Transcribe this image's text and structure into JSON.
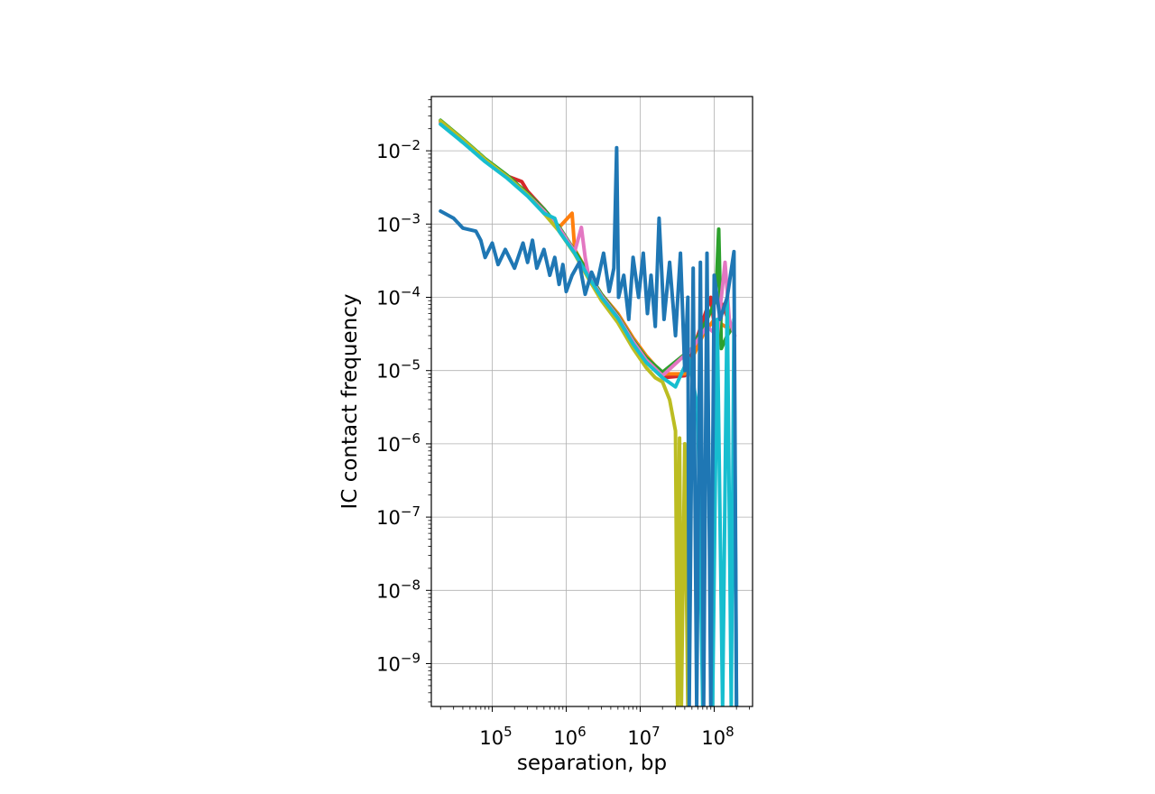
{
  "chart_data": {
    "type": "line",
    "title": "",
    "xlabel": "separation, bp",
    "ylabel": "IC contact frequency",
    "xscale": "log",
    "yscale": "log",
    "xlim": [
      15000,
      330000000
    ],
    "ylim": [
      2.6e-10,
      0.055
    ],
    "grid": true,
    "legend": "none",
    "xticks": [
      {
        "value": 100000,
        "base": "10",
        "exp": "5"
      },
      {
        "value": 1000000,
        "base": "10",
        "exp": "6"
      },
      {
        "value": 10000000,
        "base": "10",
        "exp": "7"
      },
      {
        "value": 100000000,
        "base": "10",
        "exp": "8"
      }
    ],
    "yticks": [
      {
        "value": 0.01,
        "base": "10",
        "exp": "−2"
      },
      {
        "value": 0.001,
        "base": "10",
        "exp": "−3"
      },
      {
        "value": 0.0001,
        "base": "10",
        "exp": "−4"
      },
      {
        "value": 1e-05,
        "base": "10",
        "exp": "−5"
      },
      {
        "value": 1e-06,
        "base": "10",
        "exp": "−6"
      },
      {
        "value": 1e-07,
        "base": "10",
        "exp": "−7"
      },
      {
        "value": 1e-08,
        "base": "10",
        "exp": "−8"
      },
      {
        "value": 1e-09,
        "base": "10",
        "exp": "−9"
      }
    ],
    "series": [
      {
        "color": "#d62728",
        "points": [
          [
            20000,
            0.025
          ],
          [
            40000,
            0.014
          ],
          [
            80000,
            0.0075
          ],
          [
            160000,
            0.0045
          ],
          [
            250000,
            0.0038
          ],
          [
            300000,
            0.0028
          ],
          [
            500000,
            0.0016
          ],
          [
            800000,
            0.00085
          ],
          [
            1300000,
            0.00042
          ],
          [
            2000000,
            0.0002
          ],
          [
            3000000,
            0.000105
          ],
          [
            5000000,
            5.5e-05
          ],
          [
            8000000,
            2.5e-05
          ],
          [
            12000000,
            1.4e-05
          ],
          [
            20000000,
            8e-06
          ],
          [
            40000000,
            8.5e-06
          ],
          [
            60000000,
            3e-05
          ],
          [
            90000000,
            0.0001
          ],
          [
            110000000,
            2e-05
          ],
          [
            130000000,
            8e-05
          ],
          [
            160000000,
            4.5e-05
          ]
        ]
      },
      {
        "color": "#ff7f0e",
        "points": [
          [
            20000,
            0.024
          ],
          [
            40000,
            0.0135
          ],
          [
            80000,
            0.0073
          ],
          [
            160000,
            0.0043
          ],
          [
            300000,
            0.0025
          ],
          [
            500000,
            0.0015
          ],
          [
            800000,
            0.0009
          ],
          [
            1200000,
            0.0014
          ],
          [
            1300000,
            0.00045
          ],
          [
            2000000,
            0.00021
          ],
          [
            3000000,
            0.00011
          ],
          [
            5000000,
            6e-05
          ],
          [
            8000000,
            2.8e-05
          ],
          [
            12000000,
            1.6e-05
          ],
          [
            20000000,
            9e-06
          ],
          [
            40000000,
            9e-06
          ],
          [
            70000000,
            3e-05
          ],
          [
            100000000,
            5e-05
          ],
          [
            140000000,
            4e-05
          ],
          [
            170000000,
            4e-05
          ]
        ]
      },
      {
        "color": "#2ca02c",
        "points": [
          [
            20000,
            0.026
          ],
          [
            40000,
            0.0145
          ],
          [
            80000,
            0.0078
          ],
          [
            160000,
            0.0046
          ],
          [
            300000,
            0.0026
          ],
          [
            500000,
            0.0016
          ],
          [
            800000,
            0.00092
          ],
          [
            1300000,
            0.00043
          ],
          [
            2000000,
            0.00021
          ],
          [
            3000000,
            0.00011
          ],
          [
            5000000,
            5.6e-05
          ],
          [
            8000000,
            2.6e-05
          ],
          [
            12000000,
            1.5e-05
          ],
          [
            20000000,
            9.5e-06
          ],
          [
            50000000,
            2e-05
          ],
          [
            80000000,
            5e-05
          ],
          [
            105000000,
            9e-05
          ],
          [
            115000000,
            0.00085
          ],
          [
            125000000,
            2e-05
          ],
          [
            150000000,
            3e-05
          ],
          [
            180000000,
            4e-05
          ]
        ]
      },
      {
        "color": "#e377c2",
        "points": [
          [
            20000,
            0.0245
          ],
          [
            40000,
            0.0138
          ],
          [
            80000,
            0.0075
          ],
          [
            160000,
            0.0044
          ],
          [
            300000,
            0.0025
          ],
          [
            500000,
            0.0015
          ],
          [
            800000,
            0.00088
          ],
          [
            1300000,
            0.00042
          ],
          [
            1600000,
            0.0009
          ],
          [
            1800000,
            0.00035
          ],
          [
            2000000,
            0.0002
          ],
          [
            3000000,
            0.000105
          ],
          [
            5000000,
            5.4e-05
          ],
          [
            8000000,
            2.5e-05
          ],
          [
            12000000,
            1.4e-05
          ],
          [
            20000000,
            8.5e-06
          ],
          [
            50000000,
            2e-05
          ],
          [
            80000000,
            4e-05
          ],
          [
            110000000,
            3e-05
          ],
          [
            140000000,
            0.0003
          ],
          [
            160000000,
            5e-05
          ],
          [
            190000000,
            3e-05
          ]
        ]
      },
      {
        "color": "#bcbd22",
        "points": [
          [
            20000,
            0.0255
          ],
          [
            40000,
            0.0142
          ],
          [
            80000,
            0.0076
          ],
          [
            160000,
            0.0044
          ],
          [
            300000,
            0.0025
          ],
          [
            500000,
            0.0014
          ],
          [
            800000,
            0.0008
          ],
          [
            1300000,
            0.00039
          ],
          [
            2000000,
            0.00018
          ],
          [
            3000000,
            9e-05
          ],
          [
            5000000,
            4.5e-05
          ],
          [
            8000000,
            2e-05
          ],
          [
            12000000,
            1.1e-05
          ],
          [
            16000000,
            8e-06
          ],
          [
            20000000,
            7e-06
          ],
          [
            25000000,
            4e-06
          ],
          [
            30000000,
            1.5e-06
          ],
          [
            32000000,
            2.6e-10
          ],
          [
            34000000,
            1.2e-06
          ],
          [
            36000000,
            2.6e-10
          ],
          [
            40000000,
            1e-06
          ],
          [
            44000000,
            2.6e-10
          ]
        ]
      },
      {
        "color": "#17becf",
        "points": [
          [
            20000,
            0.023
          ],
          [
            40000,
            0.013
          ],
          [
            80000,
            0.0071
          ],
          [
            160000,
            0.0042
          ],
          [
            300000,
            0.0024
          ],
          [
            500000,
            0.0014
          ],
          [
            700000,
            0.0012
          ],
          [
            800000,
            0.0008
          ],
          [
            1300000,
            0.0004
          ],
          [
            2000000,
            0.00019
          ],
          [
            3000000,
            0.0001
          ],
          [
            5000000,
            5.2e-05
          ],
          [
            8000000,
            2.3e-05
          ],
          [
            12000000,
            1.3e-05
          ],
          [
            20000000,
            8e-06
          ],
          [
            30000000,
            6e-06
          ],
          [
            45000000,
            1.5e-05
          ],
          [
            60000000,
            3e-06
          ],
          [
            70000000,
            2.6e-10
          ],
          [
            80000000,
            3e-05
          ],
          [
            95000000,
            2.6e-10
          ],
          [
            110000000,
            5e-05
          ],
          [
            130000000,
            2.6e-10
          ],
          [
            150000000,
            0.0001
          ],
          [
            170000000,
            2.6e-10
          ],
          [
            185000000,
            5e-05
          ],
          [
            200000000,
            2.6e-10
          ]
        ]
      },
      {
        "color": "#1f77b4",
        "points": [
          [
            20000,
            0.0015
          ],
          [
            30000,
            0.0012
          ],
          [
            40000,
            0.00088
          ],
          [
            60000,
            0.0008
          ],
          [
            70000,
            0.0006
          ],
          [
            80000,
            0.00035
          ],
          [
            100000,
            0.00055
          ],
          [
            120000,
            0.00028
          ],
          [
            150000,
            0.00045
          ],
          [
            200000,
            0.00025
          ],
          [
            260000,
            0.00055
          ],
          [
            300000,
            0.0003
          ],
          [
            350000,
            0.0006
          ],
          [
            400000,
            0.00025
          ],
          [
            500000,
            0.00045
          ],
          [
            600000,
            0.0002
          ],
          [
            700000,
            0.00035
          ],
          [
            800000,
            0.00015
          ],
          [
            900000,
            0.00028
          ],
          [
            1000000,
            0.00012
          ],
          [
            1200000,
            0.0002
          ],
          [
            1500000,
            0.0003
          ],
          [
            1800000,
            0.00011
          ],
          [
            2200000,
            0.00022
          ],
          [
            2600000,
            0.00015
          ],
          [
            3200000,
            0.0004
          ],
          [
            3800000,
            0.00012
          ],
          [
            4400000,
            0.00025
          ],
          [
            4800000,
            0.011
          ],
          [
            5100000,
            0.0001
          ],
          [
            6000000,
            0.0002
          ],
          [
            7000000,
            5e-05
          ],
          [
            8000000,
            0.00035
          ],
          [
            9500000,
            0.0001
          ],
          [
            11000000,
            0.0004
          ],
          [
            12500000,
            6e-05
          ],
          [
            14000000,
            0.0002
          ],
          [
            16000000,
            4e-05
          ],
          [
            18000000,
            0.0012
          ],
          [
            21000000,
            5e-05
          ],
          [
            25000000,
            0.0003
          ],
          [
            30000000,
            3e-05
          ],
          [
            35000000,
            0.0004
          ],
          [
            40000000,
            1e-05
          ],
          [
            44000000,
            0.0001
          ],
          [
            46000000,
            2.6e-10
          ],
          [
            52000000,
            0.00025
          ],
          [
            58000000,
            2.6e-10
          ],
          [
            65000000,
            0.0003
          ],
          [
            72000000,
            2.6e-10
          ],
          [
            80000000,
            0.0004
          ],
          [
            90000000,
            2.6e-10
          ],
          [
            100000000,
            0.0002
          ],
          [
            120000000,
            5e-05
          ],
          [
            150000000,
            0.0001
          ],
          [
            185000000,
            0.00042
          ],
          [
            200000000,
            2.6e-10
          ]
        ]
      }
    ]
  }
}
